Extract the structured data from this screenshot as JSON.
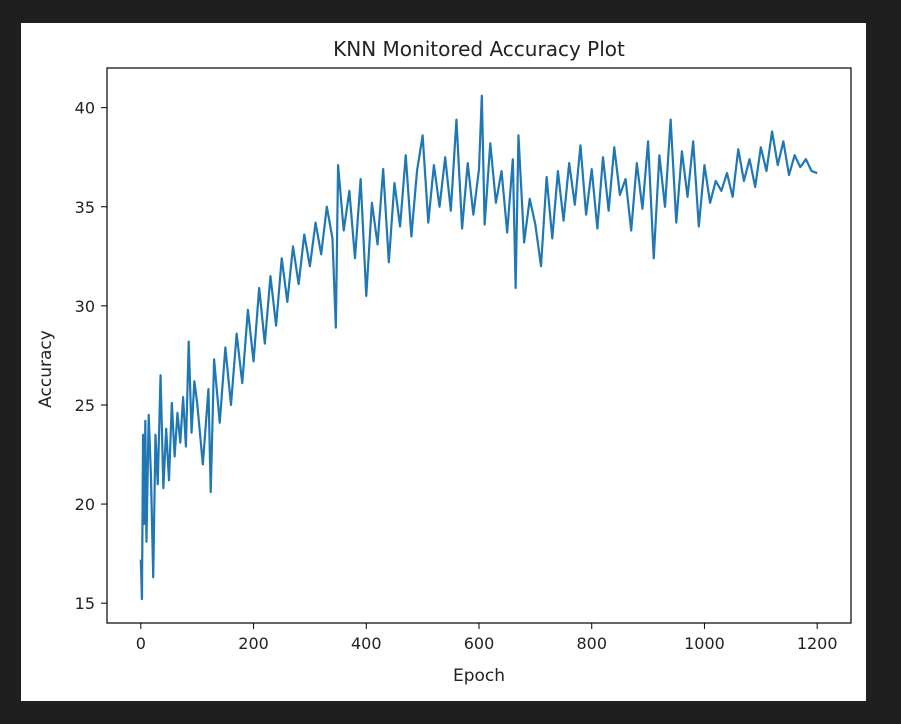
{
  "chart_data": {
    "type": "line",
    "title": "KNN Monitored Accuracy Plot",
    "xlabel": "Epoch",
    "ylabel": "Accuracy",
    "xlim": [
      -60,
      1260
    ],
    "ylim": [
      14,
      42
    ],
    "xticks": [
      0,
      200,
      400,
      600,
      800,
      1000,
      1200
    ],
    "yticks": [
      15,
      20,
      25,
      30,
      35,
      40
    ],
    "grid": false,
    "series": [
      {
        "color": "#1f77b4",
        "x": [
          0,
          2,
          4,
          6,
          8,
          10,
          14,
          18,
          22,
          26,
          30,
          35,
          40,
          45,
          50,
          55,
          60,
          65,
          70,
          75,
          80,
          85,
          90,
          95,
          100,
          110,
          120,
          124,
          130,
          140,
          150,
          160,
          170,
          180,
          190,
          200,
          210,
          220,
          230,
          240,
          250,
          260,
          270,
          280,
          290,
          300,
          310,
          320,
          330,
          340,
          346,
          350,
          360,
          370,
          380,
          390,
          400,
          410,
          420,
          430,
          440,
          450,
          460,
          470,
          480,
          490,
          500,
          510,
          520,
          530,
          540,
          550,
          560,
          570,
          580,
          590,
          600,
          605,
          610,
          620,
          630,
          640,
          650,
          660,
          665,
          670,
          680,
          690,
          700,
          710,
          720,
          730,
          740,
          750,
          760,
          770,
          780,
          790,
          800,
          810,
          820,
          830,
          840,
          850,
          860,
          870,
          880,
          890,
          900,
          910,
          920,
          930,
          940,
          950,
          960,
          970,
          980,
          990,
          1000,
          1010,
          1020,
          1030,
          1040,
          1050,
          1060,
          1070,
          1080,
          1090,
          1100,
          1110,
          1120,
          1130,
          1140,
          1150,
          1160,
          1170,
          1180,
          1190,
          1200
        ],
        "y": [
          17.2,
          15.2,
          23.5,
          19.0,
          24.2,
          18.1,
          24.5,
          21.4,
          16.3,
          23.5,
          21.0,
          26.5,
          20.8,
          23.8,
          21.2,
          25.1,
          22.4,
          24.6,
          23.1,
          25.4,
          22.9,
          28.2,
          23.6,
          26.2,
          25.1,
          22.0,
          25.8,
          20.6,
          27.3,
          24.1,
          27.9,
          25.0,
          28.6,
          26.1,
          29.8,
          27.2,
          30.9,
          28.1,
          31.5,
          29.0,
          32.4,
          30.2,
          33.0,
          31.1,
          33.6,
          32.0,
          34.2,
          32.6,
          35.0,
          33.4,
          28.9,
          37.1,
          33.8,
          35.8,
          32.4,
          36.4,
          30.5,
          35.2,
          33.1,
          36.9,
          32.2,
          36.2,
          34.0,
          37.6,
          33.5,
          36.8,
          38.6,
          34.2,
          37.1,
          35.0,
          37.5,
          34.8,
          39.4,
          33.9,
          37.2,
          34.6,
          36.9,
          40.6,
          34.1,
          38.2,
          35.2,
          36.8,
          33.7,
          37.4,
          30.9,
          38.6,
          33.2,
          35.4,
          34.1,
          32.0,
          36.5,
          33.4,
          36.8,
          34.3,
          37.2,
          35.1,
          38.1,
          34.6,
          36.9,
          33.9,
          37.5,
          34.8,
          38.0,
          35.6,
          36.4,
          33.8,
          37.2,
          34.9,
          38.3,
          32.4,
          37.6,
          35.0,
          39.4,
          34.2,
          37.8,
          35.5,
          38.3,
          34.0,
          37.1,
          35.2,
          36.3,
          35.8,
          36.7,
          35.5,
          37.9,
          36.3,
          37.4,
          36.0,
          38.0,
          36.8,
          38.8,
          37.1,
          38.3,
          36.6,
          37.6,
          37.0,
          37.4,
          36.8,
          36.7
        ]
      }
    ]
  }
}
